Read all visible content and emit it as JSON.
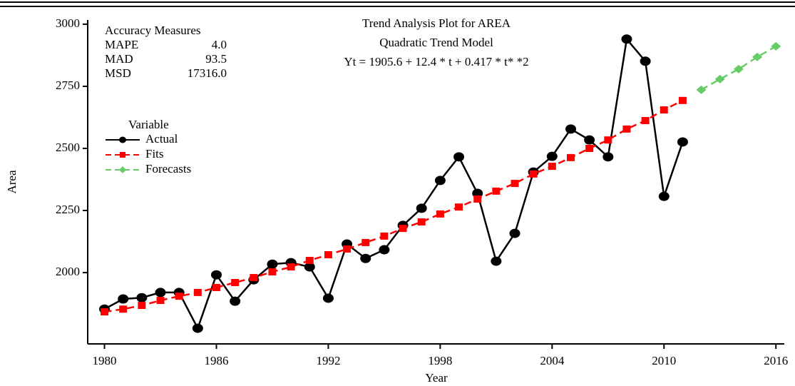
{
  "chart_data": {
    "type": "line",
    "title_lines": [
      "Trend Analysis Plot for AREA",
      "Quadratic Trend Model",
      "Yt = 1905.6 + 12.4 * t + 0.417 * t* *2"
    ],
    "x_label": "Year",
    "y_label": "Area",
    "x": [
      1980,
      1981,
      1982,
      1983,
      1984,
      1985,
      1986,
      1987,
      1988,
      1989,
      1990,
      1991,
      1992,
      1993,
      1994,
      1995,
      1996,
      1997,
      1998,
      1999,
      2000,
      2001,
      2002,
      2003,
      2004,
      2005,
      2006,
      2007,
      2008,
      2009,
      2010,
      2011,
      2012,
      2013,
      2014,
      2015,
      2016
    ],
    "series": [
      {
        "name": "Actual",
        "color": "#000000",
        "marker": "circle",
        "linestyle": "solid",
        "values": [
          1853,
          1894,
          1899,
          1920,
          1920,
          1776,
          1991,
          1885,
          1971,
          2034,
          2040,
          2023,
          1897,
          2115,
          2057,
          2092,
          2190,
          2259,
          2371,
          2466,
          2319,
          2046,
          2158,
          2405,
          2468,
          2578,
          2534,
          2466,
          2940,
          2851,
          2307,
          2526,
          null,
          null,
          null,
          null,
          null
        ]
      },
      {
        "name": "Fits",
        "color": "#ff0000",
        "marker": "square",
        "linestyle": "dashed",
        "values": [
          1842,
          1853,
          1868,
          1888,
          1905,
          1920,
          1940,
          1960,
          1980,
          2003,
          2023,
          2049,
          2072,
          2095,
          2121,
          2147,
          2178,
          2204,
          2236,
          2264,
          2296,
          2328,
          2359,
          2397,
          2428,
          2463,
          2500,
          2534,
          2578,
          2612,
          2655,
          2693,
          null,
          null,
          null,
          null,
          null
        ]
      },
      {
        "name": "Forecasts",
        "color": "#66cc66",
        "marker": "diamond",
        "linestyle": "dashed",
        "values": [
          null,
          null,
          null,
          null,
          null,
          null,
          null,
          null,
          null,
          null,
          null,
          null,
          null,
          null,
          null,
          null,
          null,
          null,
          null,
          null,
          null,
          null,
          null,
          null,
          null,
          null,
          null,
          null,
          null,
          null,
          null,
          null,
          2736,
          2779,
          2819,
          2868,
          2911
        ]
      }
    ],
    "xlim": [
      1979.1,
      2016.45
    ],
    "xticks": [
      1980,
      1986,
      1992,
      1998,
      2004,
      2010,
      2016
    ],
    "ylim": [
      1713,
      3017
    ],
    "yticks": [
      2000,
      2250,
      2500,
      2750,
      3000
    ],
    "legend_title": "Variable",
    "legend_position": "upper left",
    "accuracy": {
      "title": "Accuracy Measures",
      "rows": [
        [
          "MAPE",
          "4.0"
        ],
        [
          "MAD",
          "93.5"
        ],
        [
          "MSD",
          "17316.0"
        ]
      ]
    }
  }
}
